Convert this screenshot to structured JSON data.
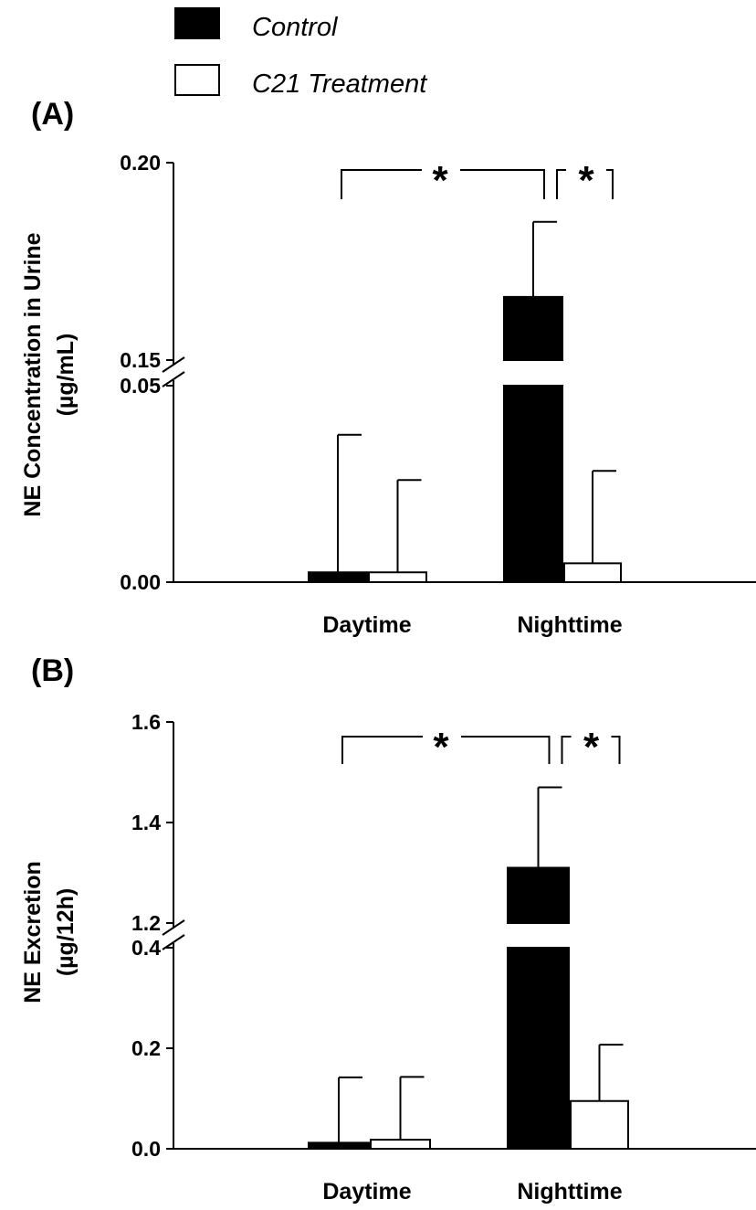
{
  "legend": {
    "items": [
      {
        "label": "Control",
        "color": "#000000"
      },
      {
        "label": "C21 Treatment",
        "color": "#ffffff"
      }
    ]
  },
  "chart_data": [
    {
      "type": "bar",
      "panel": "(A)",
      "ylabel_line1": "NE Concentration in Urine",
      "ylabel_line2": "(µg/mL)",
      "categories": [
        "Daytime",
        "Nighttime"
      ],
      "axis_break": {
        "lower": [
          0.0,
          0.05
        ],
        "upper": [
          0.15,
          0.2
        ]
      },
      "yticks": [
        {
          "label": "0.20",
          "value": 0.2
        },
        {
          "label": "0.15",
          "value": 0.15
        },
        {
          "label": "0.05",
          "value": 0.05
        },
        {
          "label": "0.00",
          "value": 0.0
        }
      ],
      "series": [
        {
          "name": "Control",
          "values": [
            0.0025,
            0.166
          ],
          "errors": [
            0.035,
            0.019
          ]
        },
        {
          "name": "C21 Treatment",
          "values": [
            0.0025,
            0.0048
          ],
          "errors": [
            0.0235,
            0.0235
          ]
        }
      ],
      "significance": [
        {
          "from": "Daytime",
          "to": "Nighttime",
          "label": "*"
        },
        {
          "from": "Nighttime",
          "to": "Nighttime",
          "label": "*"
        }
      ]
    },
    {
      "type": "bar",
      "panel": "(B)",
      "ylabel_line1": "NE Excretion",
      "ylabel_line2": "(µg/12h)",
      "categories": [
        "Daytime",
        "Nighttime"
      ],
      "axis_break": {
        "lower": [
          0.0,
          0.4
        ],
        "upper": [
          1.2,
          1.6
        ]
      },
      "yticks": [
        {
          "label": "1.6",
          "value": 1.6
        },
        {
          "label": "1.4",
          "value": 1.4
        },
        {
          "label": "1.2",
          "value": 1.2
        },
        {
          "label": "0.4",
          "value": 0.4
        },
        {
          "label": "0.2",
          "value": 0.2
        },
        {
          "label": "0.0",
          "value": 0.0
        }
      ],
      "series": [
        {
          "name": "Control",
          "values": [
            0.012,
            1.31
          ],
          "errors": [
            0.13,
            0.16
          ]
        },
        {
          "name": "C21 Treatment",
          "values": [
            0.018,
            0.095
          ],
          "errors": [
            0.125,
            0.112
          ]
        }
      ],
      "significance": [
        {
          "from": "Daytime",
          "to": "Nighttime",
          "label": "*"
        },
        {
          "from": "Nighttime",
          "to": "Nighttime",
          "label": "*"
        }
      ]
    }
  ]
}
